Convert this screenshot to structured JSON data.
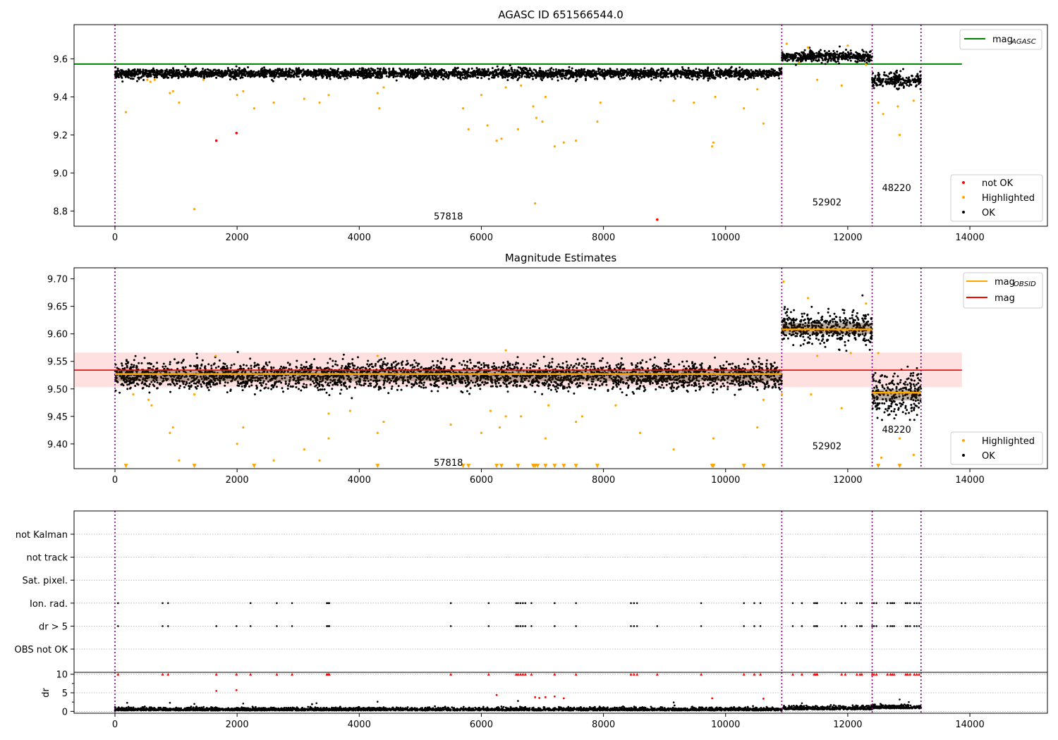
{
  "chart_data": [
    {
      "type": "scatter",
      "title": "AGASC ID 651566544.0",
      "xlim": [
        -670,
        15270
      ],
      "ylim": [
        8.72,
        9.78
      ],
      "x_ticks": [
        0,
        2000,
        4000,
        6000,
        8000,
        10000,
        12000,
        14000
      ],
      "y_ticks": [
        8.8,
        9.0,
        9.2,
        9.4,
        9.6
      ],
      "y_tick_labels": [
        "8.8",
        "9.0",
        "9.2",
        "9.4",
        "9.6"
      ],
      "obsid_boundaries": [
        0,
        10920,
        12400,
        13200
      ],
      "obsid_labels": [
        {
          "text": "57818",
          "x": 5460,
          "y": 8.755
        },
        {
          "text": "52902",
          "x": 11660,
          "y": 8.83
        },
        {
          "text": "48220",
          "x": 12800,
          "y": 8.905
        }
      ],
      "agasc_mag": 9.573,
      "agasc_line_xrange": [
        -670,
        13870
      ],
      "series": [
        {
          "name": "OK",
          "color": "#000000",
          "segments": [
            {
              "x": [
                0,
                10920
              ],
              "y": 9.523,
              "noise": 0.012
            },
            {
              "x": [
                10920,
                12400
              ],
              "y": 9.612,
              "noise": 0.014
            },
            {
              "x": [
                12400,
                13200
              ],
              "y": 9.487,
              "noise": 0.02
            }
          ]
        },
        {
          "name": "Highlighted",
          "color": "#ffa500",
          "points": [
            [
              180,
              9.32
            ],
            [
              530,
              9.49
            ],
            [
              580,
              9.48
            ],
            [
              650,
              9.49
            ],
            [
              900,
              9.42
            ],
            [
              950,
              9.43
            ],
            [
              1050,
              9.37
            ],
            [
              1300,
              8.81
            ],
            [
              1450,
              9.49
            ],
            [
              2000,
              9.41
            ],
            [
              2100,
              9.43
            ],
            [
              2280,
              9.34
            ],
            [
              2600,
              9.37
            ],
            [
              3100,
              9.39
            ],
            [
              3350,
              9.37
            ],
            [
              3500,
              9.41
            ],
            [
              4300,
              9.42
            ],
            [
              4330,
              9.34
            ],
            [
              4400,
              9.45
            ],
            [
              5700,
              9.34
            ],
            [
              5790,
              9.23
            ],
            [
              6000,
              9.41
            ],
            [
              6100,
              9.25
            ],
            [
              6250,
              9.17
            ],
            [
              6330,
              9.18
            ],
            [
              6400,
              9.45
            ],
            [
              6600,
              9.23
            ],
            [
              6650,
              9.46
            ],
            [
              6850,
              9.35
            ],
            [
              6880,
              8.84
            ],
            [
              6900,
              9.29
            ],
            [
              7000,
              9.27
            ],
            [
              7050,
              9.4
            ],
            [
              7200,
              9.14
            ],
            [
              7350,
              9.16
            ],
            [
              7550,
              9.17
            ],
            [
              7900,
              9.27
            ],
            [
              7950,
              9.37
            ],
            [
              9150,
              9.38
            ],
            [
              9480,
              9.37
            ],
            [
              9780,
              9.14
            ],
            [
              9800,
              9.16
            ],
            [
              9830,
              9.4
            ],
            [
              10300,
              9.34
            ],
            [
              10520,
              9.44
            ],
            [
              10620,
              9.26
            ],
            [
              11000,
              9.68
            ],
            [
              11200,
              9.58
            ],
            [
              11350,
              9.66
            ],
            [
              11500,
              9.49
            ],
            [
              11900,
              9.46
            ],
            [
              12500,
              9.37
            ],
            [
              12580,
              9.31
            ],
            [
              12850,
              9.2
            ],
            [
              12820,
              9.35
            ],
            [
              13080,
              9.38
            ],
            [
              12000,
              9.67
            ],
            [
              12300,
              9.57
            ]
          ]
        },
        {
          "name": "not OK",
          "color": "#ff0000",
          "points": [
            [
              1660,
              9.17
            ],
            [
              1990,
              9.21
            ],
            [
              8880,
              8.755
            ]
          ]
        }
      ],
      "legend": [
        {
          "label": "not OK",
          "color": "#ff0000"
        },
        {
          "label": "Highlighted",
          "color": "#ffa500"
        },
        {
          "label": "OK",
          "color": "#000000"
        }
      ],
      "legend_line": {
        "label": "mag",
        "subscript": "AGASC",
        "color": "#008000"
      },
      "legend_placement": [
        "top-right",
        "bottom-right"
      ]
    },
    {
      "type": "scatter",
      "title": "Magnitude Estimates",
      "xlim": [
        -670,
        15270
      ],
      "ylim": [
        9.355,
        9.72
      ],
      "x_ticks": [
        0,
        2000,
        4000,
        6000,
        8000,
        10000,
        12000,
        14000
      ],
      "y_ticks": [
        9.4,
        9.45,
        9.5,
        9.55,
        9.6,
        9.65,
        9.7
      ],
      "y_tick_labels": [
        "9.40",
        "9.45",
        "9.50",
        "9.55",
        "9.60",
        "9.65",
        "9.70"
      ],
      "obsid_boundaries": [
        0,
        10920,
        12400,
        13200
      ],
      "obsid_labels": [
        {
          "text": "57818",
          "x": 5460,
          "y": 9.36
        },
        {
          "text": "52902",
          "x": 11660,
          "y": 9.39
        },
        {
          "text": "48220",
          "x": 12800,
          "y": 9.42
        }
      ],
      "mag": 9.534,
      "mag_band": [
        9.503,
        9.566
      ],
      "mag_line_xrange": [
        -670,
        13870
      ],
      "mag_obsid": [
        {
          "x": [
            0,
            10920
          ],
          "y": 9.527
        },
        {
          "x": [
            10920,
            12400
          ],
          "y": 9.608
        },
        {
          "x": [
            12400,
            13200
          ],
          "y": 9.493
        }
      ],
      "clipped_marker_y": 9.36,
      "clipped_markers_x": [
        180,
        1300,
        2280,
        4300,
        5700,
        5790,
        6250,
        6330,
        6600,
        6850,
        6880,
        6920,
        7050,
        7200,
        7350,
        7550,
        7900,
        9780,
        9800,
        10300,
        10620,
        12500,
        12850
      ],
      "series": [
        {
          "name": "OK",
          "color": "#000000",
          "segments": [
            {
              "x": [
                0,
                10920
              ],
              "y": 9.524,
              "noise": 0.012
            },
            {
              "x": [
                10920,
                12400
              ],
              "y": 9.61,
              "noise": 0.014
            },
            {
              "x": [
                12400,
                13200
              ],
              "y": 9.489,
              "noise": 0.02
            }
          ]
        },
        {
          "name": "Highlighted",
          "color": "#ffa500",
          "points": [
            [
              300,
              9.49
            ],
            [
              550,
              9.48
            ],
            [
              600,
              9.47
            ],
            [
              900,
              9.42
            ],
            [
              950,
              9.43
            ],
            [
              1050,
              9.37
            ],
            [
              1300,
              9.49
            ],
            [
              2000,
              9.4
            ],
            [
              2100,
              9.43
            ],
            [
              2600,
              9.37
            ],
            [
              3100,
              9.39
            ],
            [
              3350,
              9.37
            ],
            [
              3500,
              9.41
            ],
            [
              3500,
              9.455
            ],
            [
              3850,
              9.46
            ],
            [
              4300,
              9.42
            ],
            [
              4400,
              9.44
            ],
            [
              5500,
              9.435
            ],
            [
              6000,
              9.42
            ],
            [
              6150,
              9.46
            ],
            [
              6300,
              9.43
            ],
            [
              6400,
              9.45
            ],
            [
              6650,
              9.45
            ],
            [
              7050,
              9.41
            ],
            [
              7100,
              9.47
            ],
            [
              7550,
              9.44
            ],
            [
              7650,
              9.45
            ],
            [
              8200,
              9.47
            ],
            [
              8600,
              9.42
            ],
            [
              9150,
              9.39
            ],
            [
              9800,
              9.41
            ],
            [
              10520,
              9.43
            ],
            [
              10620,
              9.48
            ],
            [
              10920,
              9.49
            ],
            [
              10950,
              9.695
            ],
            [
              11350,
              9.665
            ],
            [
              11400,
              9.49
            ],
            [
              11500,
              9.56
            ],
            [
              11900,
              9.465
            ],
            [
              12050,
              9.565
            ],
            [
              12300,
              9.655
            ],
            [
              12500,
              9.565
            ],
            [
              12550,
              9.375
            ],
            [
              12850,
              9.41
            ],
            [
              13080,
              9.38
            ],
            [
              6400,
              9.57
            ],
            [
              1650,
              9.56
            ],
            [
              4300,
              9.56
            ]
          ]
        }
      ],
      "legend": [
        {
          "label": "Highlighted",
          "color": "#ffa500"
        },
        {
          "label": "OK",
          "color": "#000000"
        }
      ],
      "legend_lines": [
        {
          "label": "mag",
          "subscript": "OBSID",
          "color": "#ffa500"
        },
        {
          "label": "mag",
          "subscript": "",
          "color": "#ff0000"
        }
      ],
      "legend_placement": [
        "top-right",
        "bottom-right"
      ]
    },
    {
      "type": "scatter",
      "title": "",
      "xlim": [
        -670,
        15270
      ],
      "x_ticks": [
        0,
        2000,
        4000,
        6000,
        8000,
        10000,
        12000,
        14000
      ],
      "flag_rows": [
        "not Kalman",
        "not track",
        "Sat. pixel.",
        "Ion. rad.",
        "dr > 5",
        "OBS not OK"
      ],
      "obsid_boundaries": [
        0,
        10920,
        12400,
        13200
      ],
      "flag_points": {
        "Ion. rad.": [
          50,
          780,
          870,
          2220,
          2650,
          2900,
          3470,
          3490,
          3510,
          5500,
          6120,
          6570,
          6600,
          6640,
          6680,
          6720,
          6820,
          7200,
          7550,
          8450,
          8500,
          8550,
          9600,
          10300,
          10470,
          10570,
          11100,
          11250,
          11450,
          11480,
          11500,
          11900,
          11960,
          12150,
          12200,
          12230,
          12400,
          12430,
          12470,
          12650,
          12700,
          12730,
          12760,
          12950,
          12980,
          13020,
          13090,
          13130,
          13170
        ],
        "dr > 5": [
          50,
          780,
          870,
          1660,
          1990,
          2220,
          2650,
          2900,
          3470,
          3490,
          3510,
          5500,
          6120,
          6570,
          6600,
          6640,
          6680,
          6720,
          6820,
          7200,
          7550,
          8450,
          8500,
          8550,
          8880,
          9600,
          10300,
          10470,
          10570,
          11100,
          11250,
          11450,
          11480,
          11500,
          11900,
          11960,
          12150,
          12200,
          12230,
          12400,
          12430,
          12470,
          12650,
          12700,
          12730,
          12760,
          12950,
          12980,
          13020,
          13090,
          13130,
          13170
        ]
      },
      "dr_panel": {
        "ylabel": "dr",
        "ylim": [
          -0.5,
          10.5
        ],
        "y_ticks": [
          0,
          5,
          10
        ],
        "y_tick_labels": [
          "0",
          "5",
          "10"
        ],
        "capped_value": 10,
        "base_segments": [
          {
            "x": [
              0,
              10920
            ],
            "y": 0.45,
            "noise": 0.35
          },
          {
            "x": [
              10920,
              12400
            ],
            "y": 0.7,
            "noise": 0.45
          },
          {
            "x": [
              12400,
              13200
            ],
            "y": 1.0,
            "noise": 0.45
          }
        ],
        "red_points": [
          [
            1660,
            5.5
          ],
          [
            1990,
            5.7
          ],
          [
            6250,
            4.4
          ],
          [
            6880,
            3.8
          ],
          [
            6950,
            3.6
          ],
          [
            7050,
            3.8
          ],
          [
            7200,
            4.0
          ],
          [
            7350,
            3.5
          ],
          [
            9780,
            3.5
          ],
          [
            10620,
            3.4
          ]
        ],
        "black_points": [
          [
            200,
            2.3
          ],
          [
            900,
            2.3
          ],
          [
            1300,
            2.0
          ],
          [
            2100,
            2.1
          ],
          [
            3300,
            2.2
          ],
          [
            4300,
            2.6
          ],
          [
            6600,
            2.8
          ],
          [
            9150,
            2.4
          ],
          [
            11250,
            2.2
          ],
          [
            12850,
            3.2
          ],
          [
            13000,
            2.5
          ]
        ]
      }
    }
  ]
}
